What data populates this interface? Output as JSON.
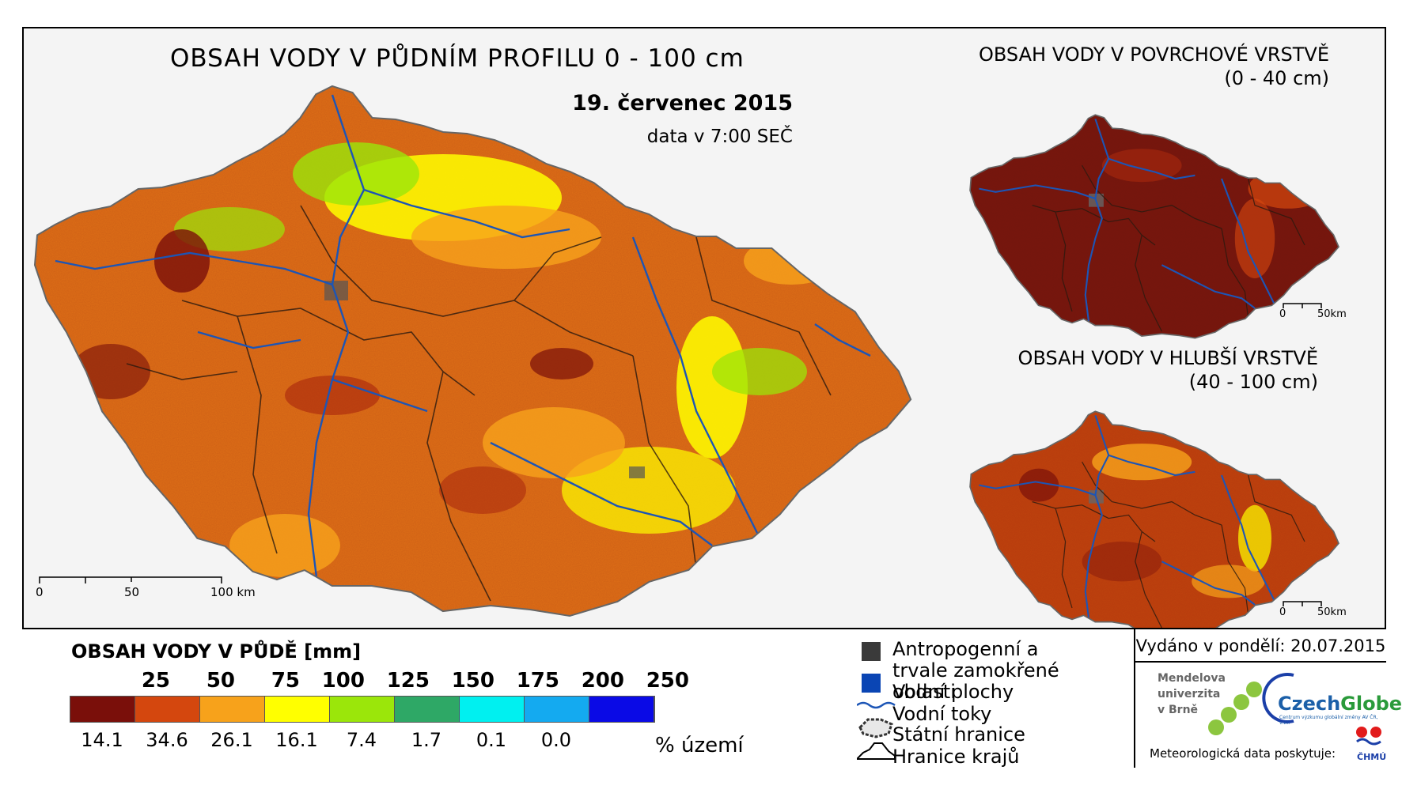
{
  "main_map": {
    "title": "OBSAH VODY V PŮDNÍM PROFILU 0 - 100 cm",
    "date": "19. červenec 2015",
    "time_note": "data v 7:00 SEČ",
    "scale_labels": [
      "0",
      "50",
      "100 km"
    ]
  },
  "inset_surface": {
    "title_line1": "OBSAH VODY V POVRCHOVÉ VRSTVĚ",
    "title_line2": "(0 - 40 cm)",
    "scale_labels": [
      "0",
      "50km"
    ]
  },
  "inset_deep": {
    "title_line1": "OBSAH VODY V HLUBŠÍ VRSTVĚ",
    "title_line2": "(40 - 100 cm)",
    "scale_labels": [
      "0",
      "50km"
    ]
  },
  "legend": {
    "title": "OBSAH VODY V PŮDĚ [mm]",
    "thresholds": [
      "25",
      "50",
      "75",
      "100",
      "125",
      "150",
      "175",
      "200",
      "250"
    ],
    "colors": [
      "#7a0f0a",
      "#d4470e",
      "#f7a21b",
      "#ffff00",
      "#9be60a",
      "#2ea866",
      "#00f0f0",
      "#14aaf0",
      "#0a0ae6"
    ],
    "percentages": [
      "14.1",
      "34.6",
      "26.1",
      "16.1",
      "7.4",
      "1.7",
      "0.1",
      "0.0",
      ""
    ],
    "percent_label": "% území"
  },
  "symbols": {
    "wetland": "Antropogenní a trvale zamokřené oblasti",
    "water_bodies": "Vodní plochy",
    "rivers": "Vodní toky",
    "state_border": "Státní hranice",
    "region_border": "Hranice krajů"
  },
  "footer": {
    "issued": "Vydáno v pondělí: 20.07.2015",
    "mendel_l1": "Mendelova",
    "mendel_l2": "univerzita",
    "mendel_l3": "v Brně",
    "czechglobe_a": "Czech",
    "czechglobe_b": "Globe",
    "czechglobe_sub": "Centrum výzkumu globální změny AV ČR, v.v.i.",
    "meteo": "Meteorologická data poskytuje:",
    "chmu": "ČHMÚ"
  }
}
